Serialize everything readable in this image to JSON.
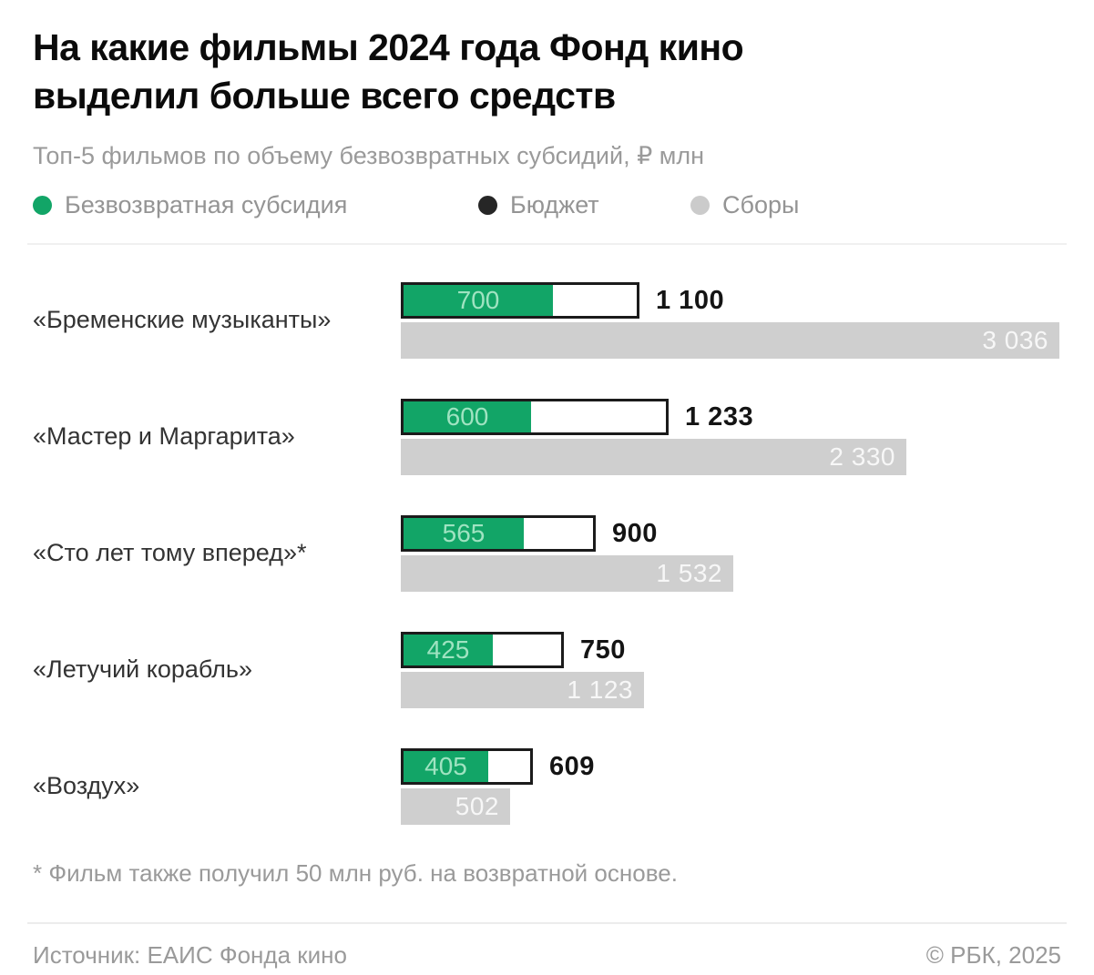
{
  "header": {
    "title_lines": [
      "На какие фильмы 2024 года Фонд кино",
      "выделил больше всего средств"
    ],
    "subtitle": "Топ-5 фильмов по объему безвозвратных субсидий, ₽ млн"
  },
  "legend": {
    "items": [
      {
        "label": "Безвозвратная субсидия",
        "color": "#12a567"
      },
      {
        "label": "Бюджет",
        "color": "#262626"
      },
      {
        "label": "Сборы",
        "color": "#cbcbcb"
      }
    ]
  },
  "chart_data": {
    "type": "bar",
    "orientation": "horizontal",
    "unit": "₽ млн",
    "categories": [
      "«Бременские музыканты»",
      "«Мастер и Маргарита»",
      "«Сто лет тому вперед»*",
      "«Летучий корабль»",
      "«Воздух»"
    ],
    "series": [
      {
        "name": "Безвозвратная субсидия",
        "values": [
          700,
          600,
          565,
          425,
          405
        ]
      },
      {
        "name": "Бюджет",
        "values": [
          1100,
          1233,
          900,
          750,
          609
        ]
      },
      {
        "name": "Сборы",
        "values": [
          3036,
          2330,
          1532,
          1123,
          502
        ]
      }
    ],
    "value_labels": {
      "subsidy": [
        "700",
        "600",
        "565",
        "425",
        "405"
      ],
      "budget": [
        "1 100",
        "1 233",
        "900",
        "750",
        "609"
      ],
      "box_office": [
        "3 036",
        "2 330",
        "1 532",
        "1 123",
        "502"
      ]
    },
    "xlim": [
      0,
      3036
    ],
    "grid": false,
    "legend_position": "top"
  },
  "footnote": "* Фильм также получил 50 млн руб. на возвратной основе.",
  "footer": {
    "source": "Источник: ЕАИС Фонда кино",
    "copyright": "© РБК, 2025"
  },
  "colors": {
    "subsidy_bar": "#12a567",
    "subsidy_text": "#9fe3c1",
    "budget_border": "#1b1b1b",
    "budget_fill": "#ffffff",
    "box_bar": "#cfcfcf",
    "box_text": "#f7f7f7"
  }
}
